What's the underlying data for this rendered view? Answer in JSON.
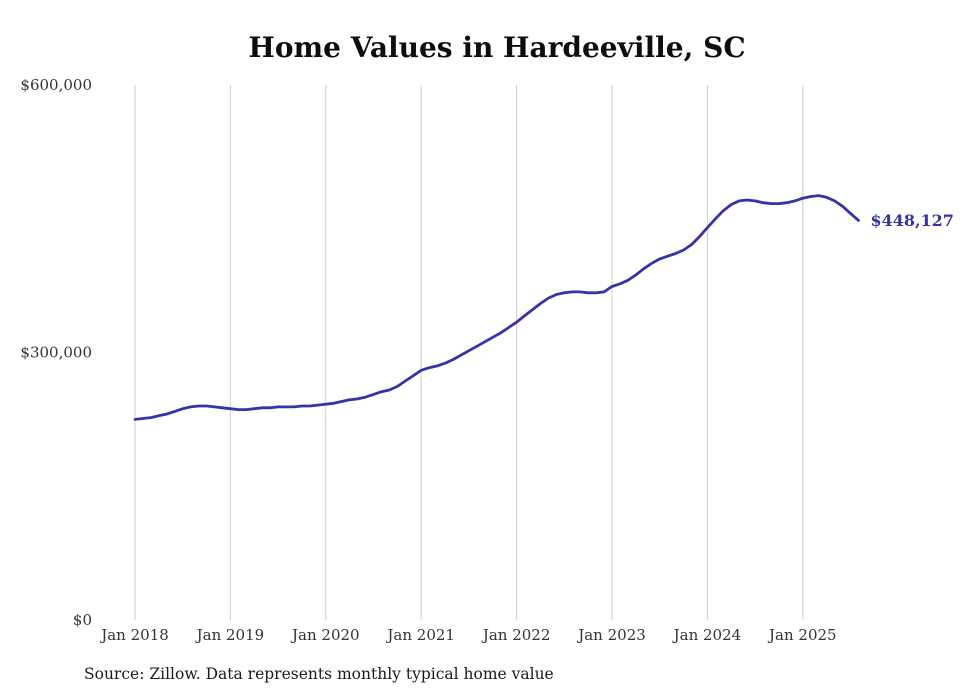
{
  "title": "Home Values in Hardeeville, SC",
  "source_note": "Source: Zillow. Data represents monthly typical home value",
  "chart_data": {
    "type": "line",
    "title": "Home Values in Hardeeville, SC",
    "series_name": "Monthly typical home value",
    "x_tick_labels": [
      "Jan 2018",
      "Jan 2019",
      "Jan 2020",
      "Jan 2021",
      "Jan 2022",
      "Jan 2023",
      "Jan 2024",
      "Jan 2025"
    ],
    "y_tick_labels": [
      "$0",
      "$300,000",
      "$600,000"
    ],
    "y_ticks": [
      0,
      300000,
      600000
    ],
    "ylim": [
      0,
      600000
    ],
    "grid": "vertical-only",
    "legend": "none",
    "end_label": "$448,127",
    "end_value": 448127,
    "line_color": "#3533a8",
    "grid_color": "#cccccc",
    "text_color": "#333333",
    "x": [
      "2018-01",
      "2018-02",
      "2018-03",
      "2018-04",
      "2018-05",
      "2018-06",
      "2018-07",
      "2018-08",
      "2018-09",
      "2018-10",
      "2018-11",
      "2018-12",
      "2019-01",
      "2019-02",
      "2019-03",
      "2019-04",
      "2019-05",
      "2019-06",
      "2019-07",
      "2019-08",
      "2019-09",
      "2019-10",
      "2019-11",
      "2019-12",
      "2020-01",
      "2020-02",
      "2020-03",
      "2020-04",
      "2020-05",
      "2020-06",
      "2020-07",
      "2020-08",
      "2020-09",
      "2020-10",
      "2020-11",
      "2020-12",
      "2021-01",
      "2021-02",
      "2021-03",
      "2021-04",
      "2021-05",
      "2021-06",
      "2021-07",
      "2021-08",
      "2021-09",
      "2021-10",
      "2021-11",
      "2021-12",
      "2022-01",
      "2022-02",
      "2022-03",
      "2022-04",
      "2022-05",
      "2022-06",
      "2022-07",
      "2022-08",
      "2022-09",
      "2022-10",
      "2022-11",
      "2022-12",
      "2023-01",
      "2023-02",
      "2023-03",
      "2023-04",
      "2023-05",
      "2023-06",
      "2023-07",
      "2023-08",
      "2023-09",
      "2023-10",
      "2023-11",
      "2023-12",
      "2024-01",
      "2024-02",
      "2024-03",
      "2024-04",
      "2024-05",
      "2024-06",
      "2024-07",
      "2024-08",
      "2024-09",
      "2024-10",
      "2024-11",
      "2024-12",
      "2025-01",
      "2025-02",
      "2025-03",
      "2025-04",
      "2025-05",
      "2025-06",
      "2025-07",
      "2025-08"
    ],
    "values": [
      225000,
      226000,
      227000,
      229000,
      231000,
      234000,
      237000,
      239000,
      240000,
      240000,
      239000,
      238000,
      237000,
      236000,
      236000,
      237000,
      238000,
      238000,
      239000,
      239000,
      239000,
      240000,
      240000,
      241000,
      242000,
      243000,
      245000,
      247000,
      248000,
      250000,
      253000,
      256000,
      258000,
      262000,
      268000,
      274000,
      280000,
      283000,
      285000,
      288000,
      292000,
      297000,
      302000,
      307000,
      312000,
      317000,
      322000,
      328000,
      334000,
      341000,
      348000,
      355000,
      361000,
      365000,
      367000,
      368000,
      368000,
      367000,
      367000,
      368000,
      374000,
      377000,
      381000,
      387000,
      394000,
      400000,
      405000,
      408000,
      411000,
      415000,
      421000,
      430000,
      440000,
      450000,
      459000,
      466000,
      470000,
      471000,
      470000,
      468000,
      467000,
      467000,
      468000,
      470000,
      473000,
      475000,
      476000,
      474000,
      470000,
      464000,
      456000,
      448127
    ]
  }
}
